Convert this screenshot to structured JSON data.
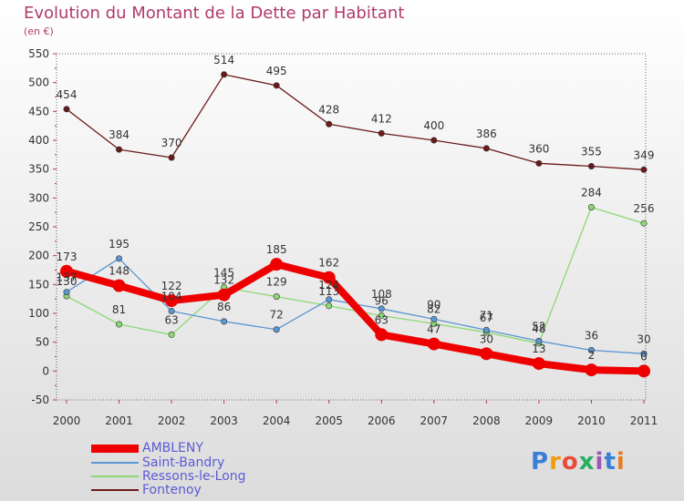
{
  "title": "Evolution du Montant de la Dette par Habitant",
  "subtitle": "(en €)",
  "logo": "Proxiti",
  "chart_data": {
    "type": "line",
    "title": "Evolution du Montant de la Dette par Habitant",
    "subtitle": "(en €)",
    "xlabel": "",
    "ylabel": "",
    "x": [
      "2000",
      "2001",
      "2002",
      "2003",
      "2004",
      "2005",
      "2006",
      "2007",
      "2008",
      "2009",
      "2010",
      "2011"
    ],
    "ylim": [
      -50,
      550
    ],
    "yticks": [
      -50,
      0,
      50,
      100,
      150,
      200,
      250,
      300,
      350,
      400,
      450,
      500,
      550
    ],
    "grid": false,
    "legend": "bottom-left",
    "series": [
      {
        "name": "AMBLENY",
        "color": "#ee0000",
        "values": [
          173,
          148,
          122,
          132,
          185,
          162,
          63,
          47,
          30,
          13,
          2,
          0
        ]
      },
      {
        "name": "Saint-Bandry",
        "color": "#5a96d2",
        "values": [
          137,
          195,
          104,
          86,
          72,
          124,
          108,
          90,
          71,
          52,
          36,
          30
        ]
      },
      {
        "name": "Ressons-le-Long",
        "color": "#8cd873",
        "values": [
          130,
          81,
          63,
          145,
          129,
          113,
          96,
          82,
          67,
          48,
          284,
          256
        ]
      },
      {
        "name": "Fontenoy",
        "color": "#6b1a1a",
        "values": [
          454,
          384,
          370,
          514,
          495,
          428,
          412,
          400,
          386,
          360,
          355,
          349
        ]
      }
    ]
  }
}
